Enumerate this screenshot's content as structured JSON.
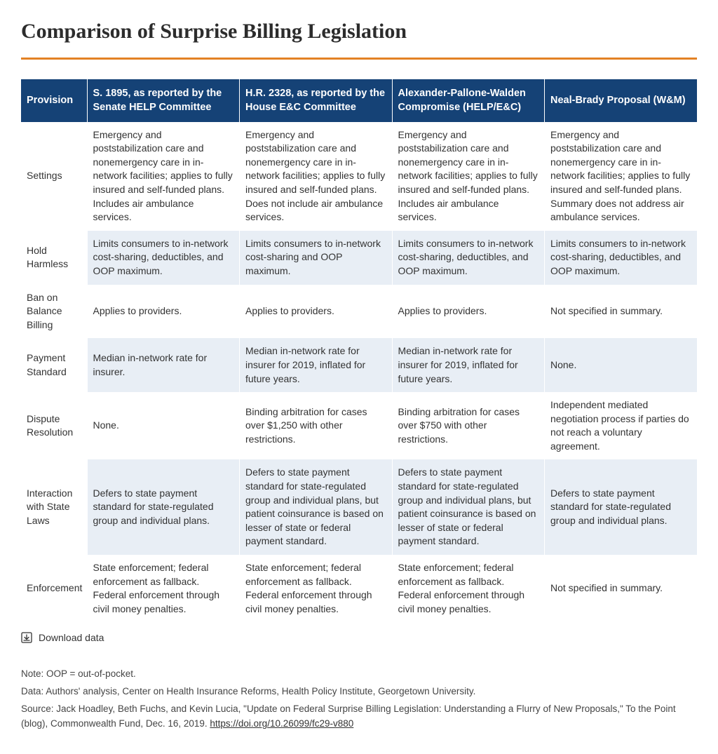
{
  "title": "Comparison of Surprise Billing Legislation",
  "colors": {
    "accent_rule": "#e38124",
    "header_bg": "#154276",
    "header_text": "#ffffff",
    "row_shade": "#e8eef5",
    "body_text": "#333333",
    "background": "#ffffff"
  },
  "table": {
    "columns": [
      "Provision",
      "S. 1895, as reported by the Senate HELP Committee",
      "H.R. 2328, as reported by the House E&C Committee",
      "Alexander-Pallone-Walden Compromise (HELP/E&C)",
      "Neal-Brady Proposal (W&M)"
    ],
    "rows": [
      {
        "provision": "Settings",
        "shaded": false,
        "cells": [
          "Emergency and poststabilization care and nonemergency care in in-network facilities; applies to fully insured and self-funded plans. Includes air ambulance services.",
          "Emergency and poststabilization care and nonemergency care in in-network facilities; applies to fully insured and self-funded plans. Does not include air ambulance services.",
          "Emergency and poststabilization care and nonemergency care in in-network facilities; applies to fully insured and self-funded plans. Includes air ambulance services.",
          "Emergency and poststabilization care and nonemergency care in in-network facilities; applies to fully insured and self-funded plans. Summary does not address air ambulance services."
        ]
      },
      {
        "provision": "Hold Harmless",
        "shaded": true,
        "cells": [
          "Limits consumers to in-network cost-sharing, deductibles, and OOP maximum.",
          "Limits consumers to in-network cost-sharing and OOP maximum.",
          "Limits consumers to in-network cost-sharing, deductibles, and OOP maximum.",
          "Limits consumers to in-network cost-sharing, deductibles, and OOP maximum."
        ]
      },
      {
        "provision": "Ban on Balance Billing",
        "shaded": false,
        "cells": [
          "Applies to providers.",
          "Applies to providers.",
          "Applies to providers.",
          "Not specified in summary."
        ]
      },
      {
        "provision": "Payment Standard",
        "shaded": true,
        "cells": [
          "Median in-network rate for insurer.",
          "Median in-network rate for insurer for 2019, inflated for future years.",
          "Median in-network rate for insurer for 2019, inflated for future years.",
          "None."
        ]
      },
      {
        "provision": "Dispute Resolution",
        "shaded": false,
        "cells": [
          "None.",
          "Binding arbitration for cases over $1,250 with other restrictions.",
          "Binding arbitration for cases over $750 with other restrictions.",
          "Independent mediated negotiation process if parties do not reach a voluntary agreement."
        ]
      },
      {
        "provision": "Interaction with State Laws",
        "shaded": true,
        "cells": [
          "Defers to state payment standard for state-regulated group and individual plans.",
          "Defers to state payment standard for state-regulated group and individual plans, but patient coinsurance is based on lesser of state or federal payment standard.",
          "Defers to state payment standard for state-regulated group and individual plans, but patient coinsurance is based on lesser of state or federal payment standard.",
          "Defers to state payment standard for state-regulated group and individual plans."
        ]
      },
      {
        "provision": "Enforcement",
        "shaded": false,
        "cells": [
          "State enforcement; federal enforcement as fallback. Federal enforcement through civil money penalties.",
          "State enforcement; federal enforcement as fallback. Federal enforcement through civil money penalties.",
          "State enforcement; federal enforcement as fallback. Federal enforcement through civil money penalties.",
          "Not specified in summary."
        ]
      }
    ]
  },
  "download_label": "Download data",
  "notes": {
    "line1": "Note: OOP = out-of-pocket.",
    "line2": "Data: Authors' analysis, Center on Health Insurance Reforms, Health Policy Institute, Georgetown University."
  },
  "source": {
    "prefix": "Source: Jack Hoadley, Beth Fuchs, and Kevin Lucia, \"Update on Federal Surprise Billing Legislation: Understanding a Flurry of New Proposals,\" To the Point (blog), Commonwealth Fund, Dec. 16, 2019. ",
    "link_text": "https://doi.org/10.26099/fc29-v880"
  }
}
